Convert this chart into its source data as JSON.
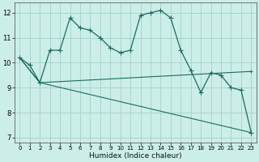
{
  "xlabel": "Humidex (Indice chaleur)",
  "bg_color": "#cceee8",
  "grid_color": "#aad4ce",
  "line_color": "#1a6b60",
  "xlim": [
    -0.5,
    23.5
  ],
  "ylim": [
    6.8,
    12.4
  ],
  "xticks": [
    0,
    1,
    2,
    3,
    4,
    5,
    6,
    7,
    8,
    9,
    10,
    11,
    12,
    13,
    14,
    15,
    16,
    17,
    18,
    19,
    20,
    21,
    22,
    23
  ],
  "yticks": [
    7,
    8,
    9,
    10,
    11,
    12
  ],
  "line1_x": [
    0,
    1,
    2,
    3,
    4,
    5,
    6,
    7,
    8,
    9,
    10,
    11,
    12,
    13,
    14,
    15,
    16,
    17,
    18,
    19,
    20,
    21,
    22,
    23
  ],
  "line1_y": [
    10.2,
    9.9,
    9.2,
    10.5,
    10.5,
    11.8,
    11.4,
    11.3,
    11.0,
    10.6,
    10.4,
    10.5,
    11.9,
    12.0,
    12.1,
    11.8,
    10.5,
    9.7,
    8.8,
    9.6,
    9.5,
    9.0,
    8.9,
    7.2
  ],
  "line2_x": [
    0,
    2,
    23
  ],
  "line2_y": [
    10.2,
    9.2,
    9.65
  ],
  "line3_x": [
    0,
    2,
    23
  ],
  "line3_y": [
    10.2,
    9.2,
    7.2
  ]
}
